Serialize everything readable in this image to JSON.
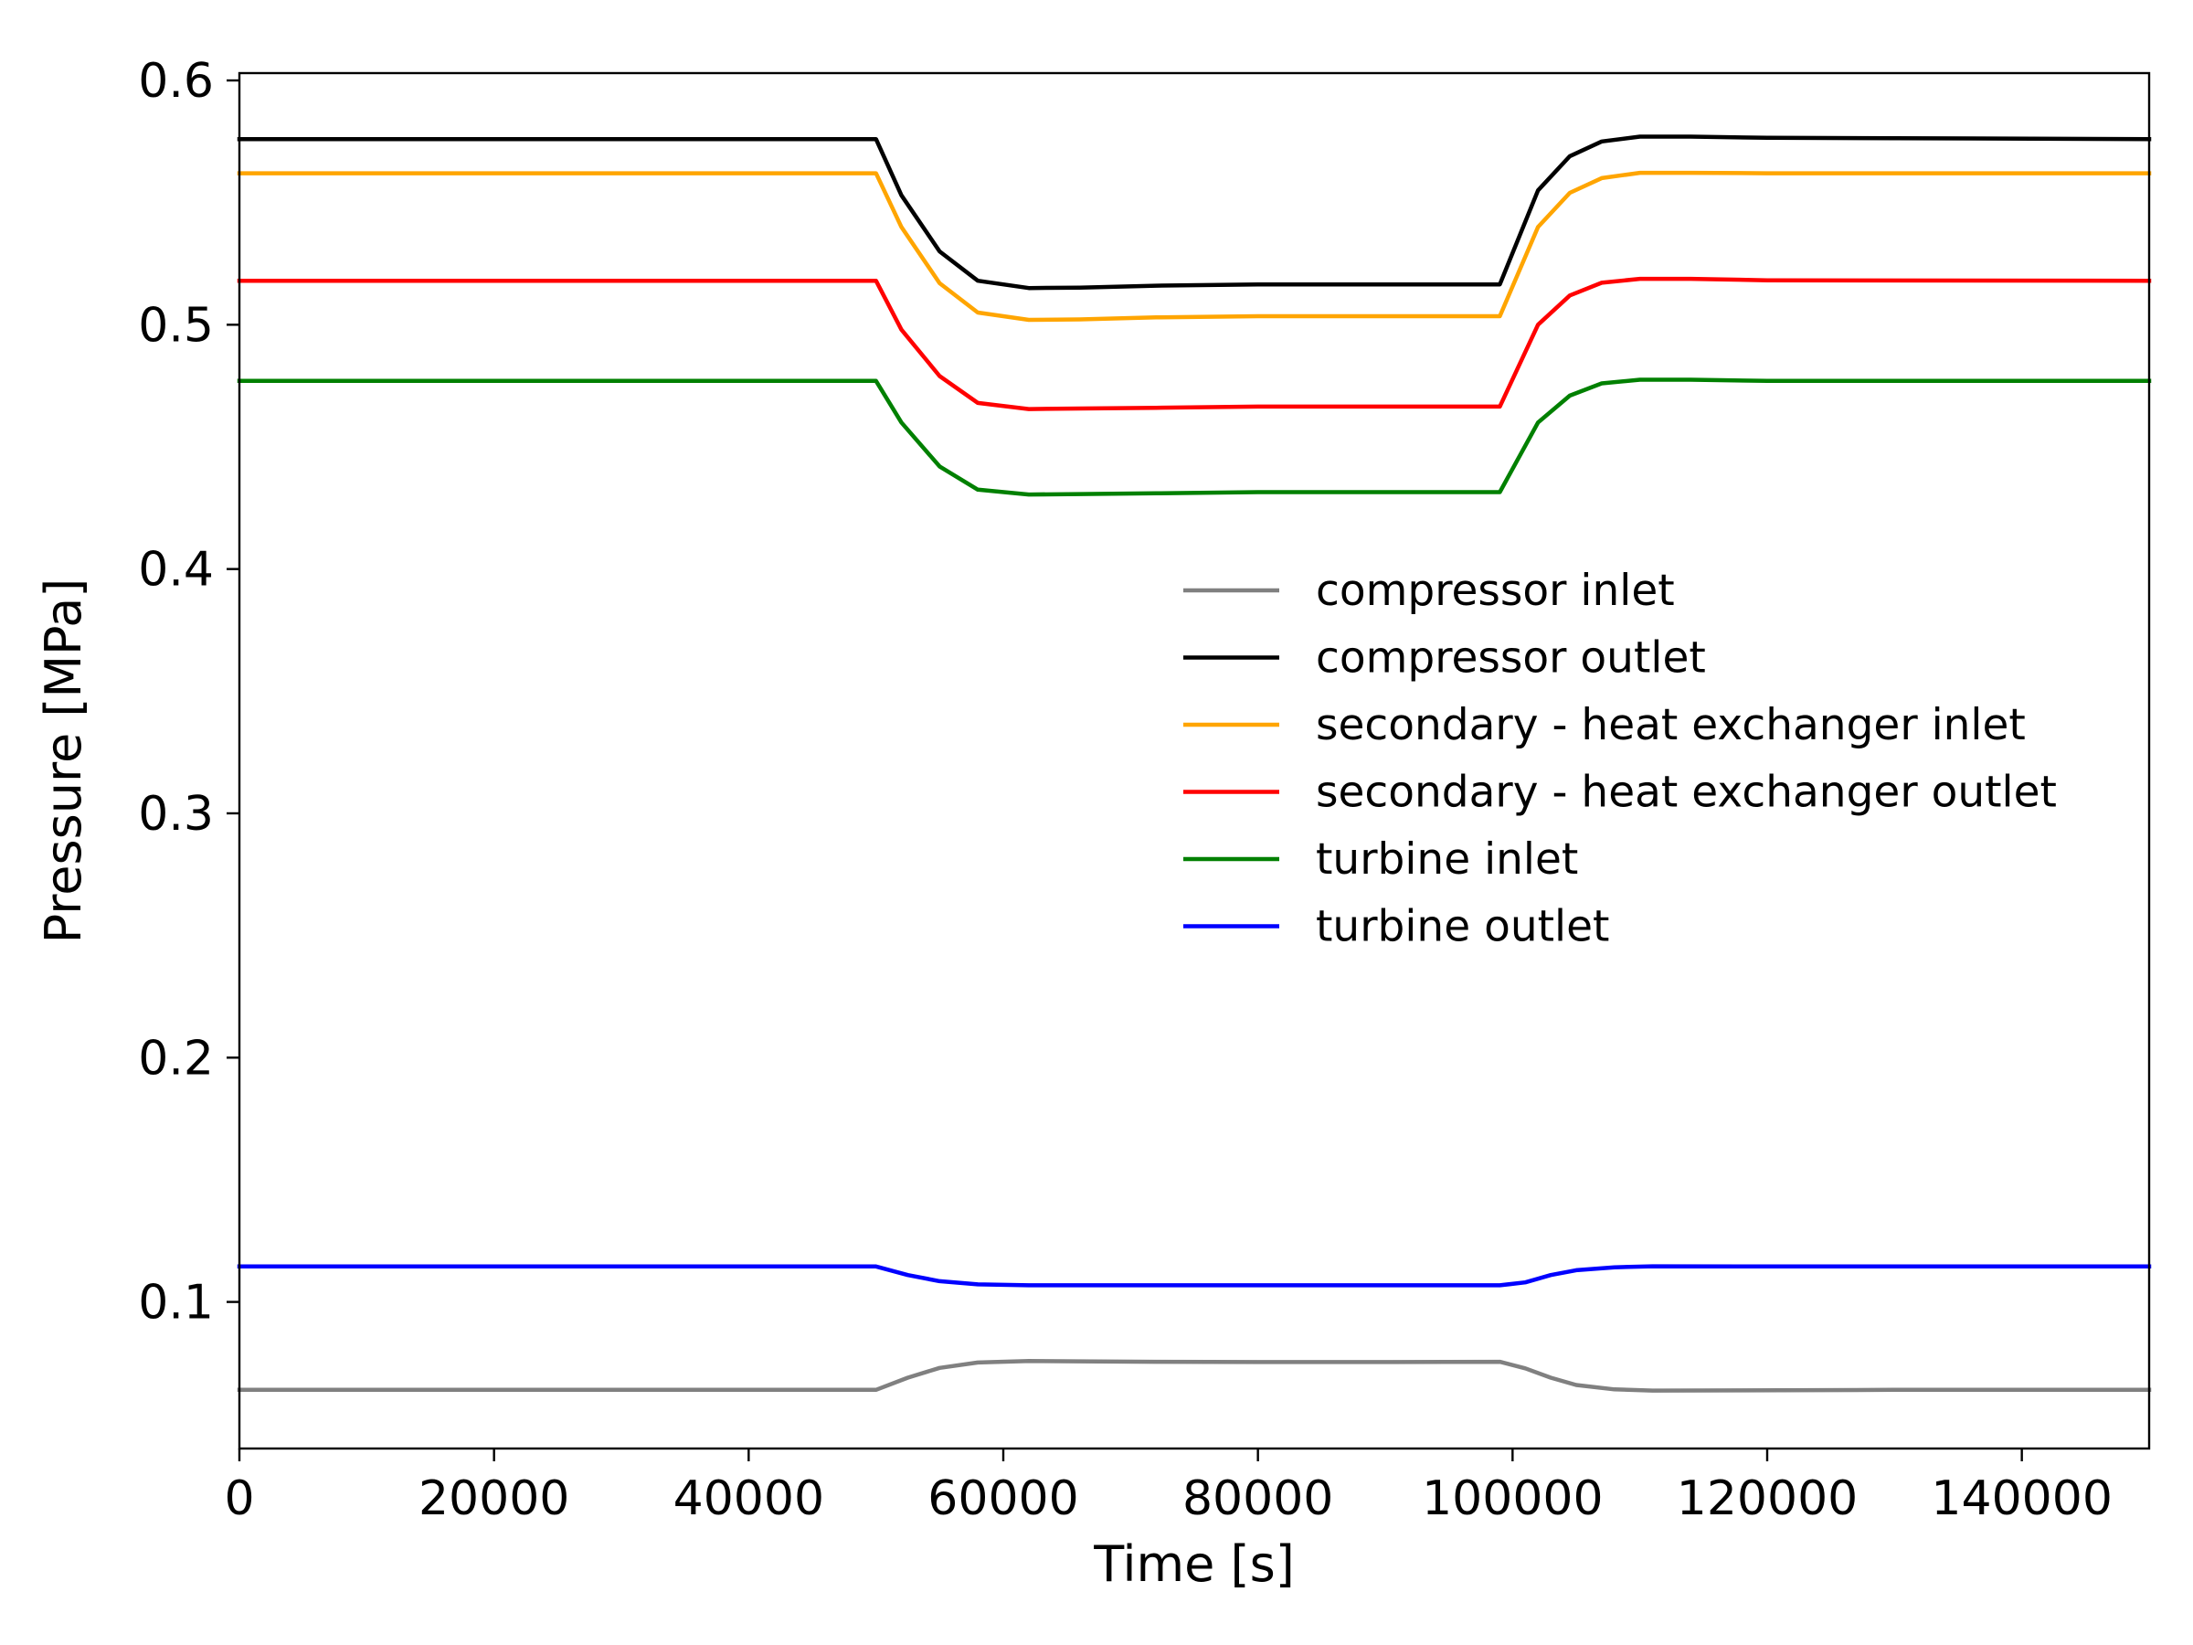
{
  "chart_data": {
    "type": "line",
    "title": "",
    "xlabel": "Time [s]",
    "ylabel": "Pressure [MPa]",
    "xlim": [
      0,
      150000
    ],
    "ylim": [
      0.04,
      0.603
    ],
    "xticks": [
      0,
      20000,
      40000,
      60000,
      80000,
      100000,
      120000,
      140000
    ],
    "xtick_labels": [
      "0",
      "20000",
      "40000",
      "60000",
      "80000",
      "100000",
      "120000",
      "140000"
    ],
    "yticks": [
      0.1,
      0.2,
      0.3,
      0.4,
      0.5,
      0.6
    ],
    "ytick_labels": [
      "0.1",
      "0.2",
      "0.3",
      "0.4",
      "0.5",
      "0.6"
    ],
    "grid": false,
    "legend_position": "center-right",
    "series": [
      {
        "name": "compressor inlet",
        "color": "#808080",
        "points": [
          [
            0,
            0.064
          ],
          [
            50000,
            0.064
          ],
          [
            52500,
            0.069
          ],
          [
            55000,
            0.073
          ],
          [
            58000,
            0.0752
          ],
          [
            62000,
            0.0758
          ],
          [
            66000,
            0.0757
          ],
          [
            72000,
            0.0755
          ],
          [
            80000,
            0.0754
          ],
          [
            90000,
            0.0754
          ],
          [
            99000,
            0.0755
          ],
          [
            101000,
            0.0728
          ],
          [
            103000,
            0.069
          ],
          [
            105000,
            0.066
          ],
          [
            108000,
            0.0642
          ],
          [
            111000,
            0.0637
          ],
          [
            118000,
            0.0638
          ],
          [
            130000,
            0.064
          ],
          [
            150000,
            0.064
          ]
        ]
      },
      {
        "name": "compressor outlet",
        "color": "#000000",
        "points": [
          [
            0,
            0.576
          ],
          [
            50000,
            0.576
          ],
          [
            52000,
            0.553
          ],
          [
            55000,
            0.53
          ],
          [
            58000,
            0.518
          ],
          [
            62000,
            0.515
          ],
          [
            66000,
            0.5152
          ],
          [
            72000,
            0.516
          ],
          [
            80000,
            0.5165
          ],
          [
            90000,
            0.5165
          ],
          [
            99000,
            0.5165
          ],
          [
            102000,
            0.555
          ],
          [
            104500,
            0.569
          ],
          [
            107000,
            0.575
          ],
          [
            110000,
            0.577
          ],
          [
            114000,
            0.577
          ],
          [
            120000,
            0.5765
          ],
          [
            150000,
            0.576
          ]
        ]
      },
      {
        "name": "secondary - heat exchanger inlet",
        "color": "#FFA500",
        "points": [
          [
            0,
            0.562
          ],
          [
            50000,
            0.562
          ],
          [
            52000,
            0.54
          ],
          [
            55000,
            0.517
          ],
          [
            58000,
            0.505
          ],
          [
            62000,
            0.502
          ],
          [
            66000,
            0.5022
          ],
          [
            72000,
            0.503
          ],
          [
            80000,
            0.5035
          ],
          [
            90000,
            0.5035
          ],
          [
            99000,
            0.5035
          ],
          [
            102000,
            0.54
          ],
          [
            104500,
            0.554
          ],
          [
            107000,
            0.56
          ],
          [
            110000,
            0.5622
          ],
          [
            114000,
            0.5622
          ],
          [
            120000,
            0.562
          ],
          [
            150000,
            0.562
          ]
        ]
      },
      {
        "name": "secondary - heat exchanger outlet",
        "color": "#FF0000",
        "points": [
          [
            0,
            0.518
          ],
          [
            50000,
            0.518
          ],
          [
            52000,
            0.498
          ],
          [
            55000,
            0.479
          ],
          [
            58000,
            0.468
          ],
          [
            62000,
            0.4655
          ],
          [
            66000,
            0.4657
          ],
          [
            72000,
            0.466
          ],
          [
            80000,
            0.4665
          ],
          [
            90000,
            0.4665
          ],
          [
            99000,
            0.4665
          ],
          [
            102000,
            0.5
          ],
          [
            104500,
            0.512
          ],
          [
            107000,
            0.5172
          ],
          [
            110000,
            0.5188
          ],
          [
            114000,
            0.5188
          ],
          [
            120000,
            0.5182
          ],
          [
            150000,
            0.518
          ]
        ]
      },
      {
        "name": "turbine inlet",
        "color": "#008000",
        "points": [
          [
            0,
            0.477
          ],
          [
            50000,
            0.477
          ],
          [
            52000,
            0.46
          ],
          [
            55000,
            0.442
          ],
          [
            58000,
            0.4325
          ],
          [
            62000,
            0.4305
          ],
          [
            66000,
            0.4307
          ],
          [
            72000,
            0.431
          ],
          [
            80000,
            0.4315
          ],
          [
            90000,
            0.4315
          ],
          [
            99000,
            0.4315
          ],
          [
            102000,
            0.46
          ],
          [
            104500,
            0.471
          ],
          [
            107000,
            0.476
          ],
          [
            110000,
            0.4775
          ],
          [
            114000,
            0.4775
          ],
          [
            120000,
            0.477
          ],
          [
            150000,
            0.477
          ]
        ]
      },
      {
        "name": "turbine outlet",
        "color": "#0000FF",
        "points": [
          [
            0,
            0.1145
          ],
          [
            50000,
            0.1145
          ],
          [
            52500,
            0.111
          ],
          [
            55000,
            0.1085
          ],
          [
            58000,
            0.1072
          ],
          [
            62000,
            0.1068
          ],
          [
            70000,
            0.1068
          ],
          [
            80000,
            0.1068
          ],
          [
            90000,
            0.1068
          ],
          [
            99000,
            0.1068
          ],
          [
            101000,
            0.108
          ],
          [
            103000,
            0.111
          ],
          [
            105000,
            0.113
          ],
          [
            108000,
            0.1142
          ],
          [
            111000,
            0.1146
          ],
          [
            120000,
            0.1145
          ],
          [
            150000,
            0.1145
          ]
        ]
      }
    ]
  }
}
